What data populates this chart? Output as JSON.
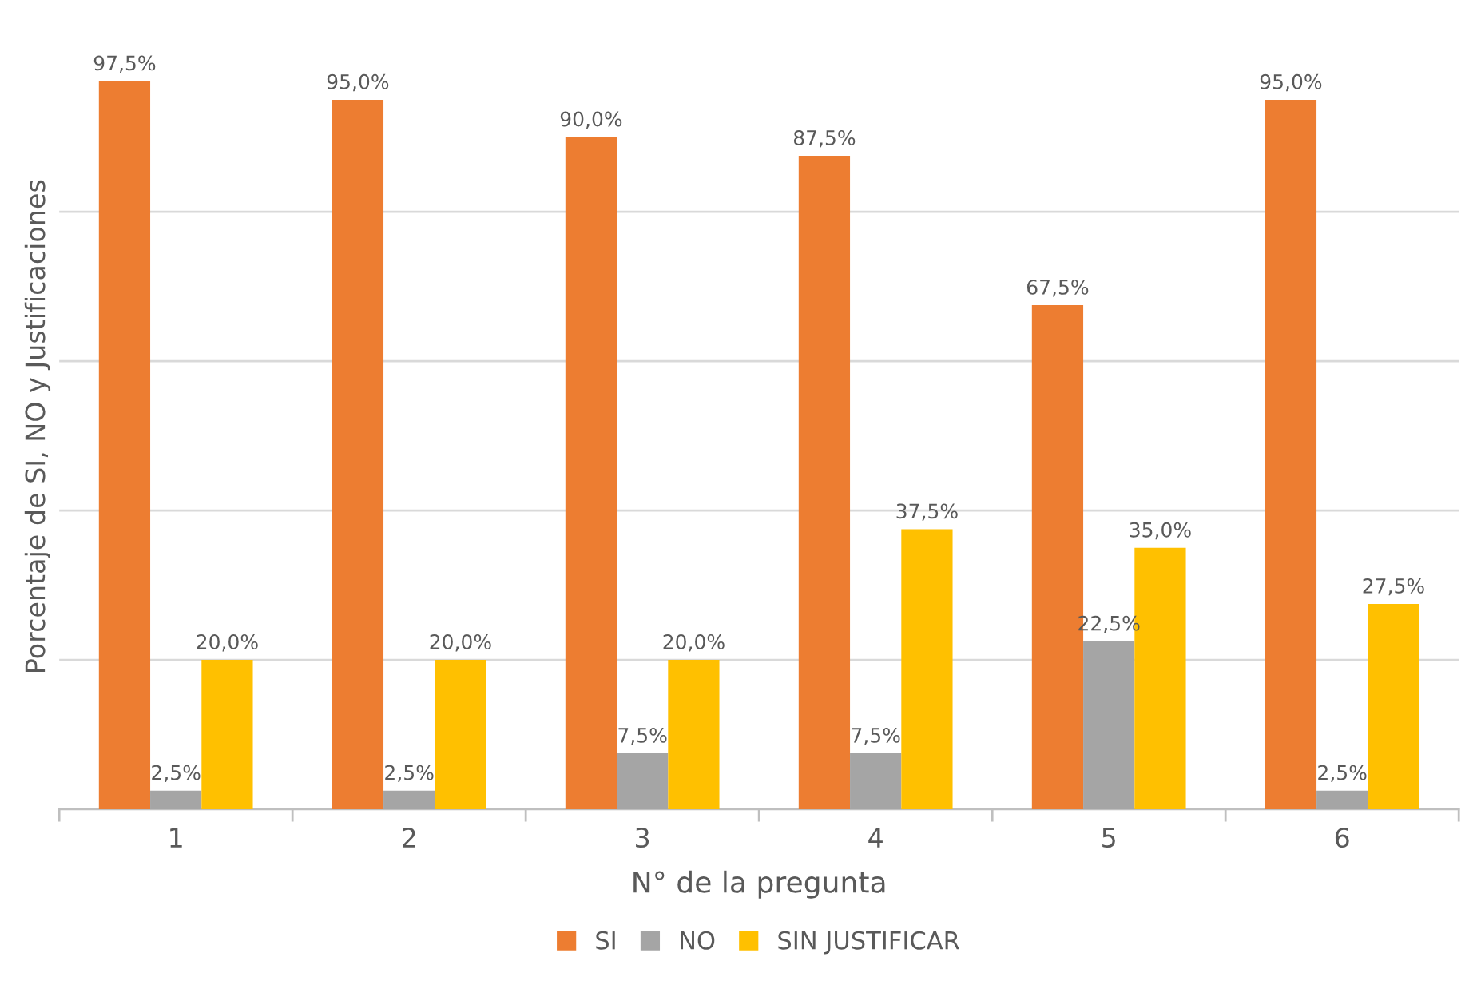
{
  "chart_data": {
    "type": "bar",
    "xlabel": "N° de la pregunta",
    "ylabel": "Porcentaje de SI, NO y Justificaciones",
    "categories": [
      "1",
      "2",
      "3",
      "4",
      "5",
      "6"
    ],
    "series": [
      {
        "name": "SI",
        "color": "#ed7d31",
        "values": [
          97.5,
          95.0,
          90.0,
          87.5,
          67.5,
          95.0
        ],
        "value_labels": [
          "97,5%",
          "95,0%",
          "90,0%",
          "87,5%",
          "67,5%",
          "95,0%"
        ]
      },
      {
        "name": "NO",
        "color": "#a5a5a5",
        "values": [
          2.5,
          2.5,
          7.5,
          7.5,
          22.5,
          2.5
        ],
        "value_labels": [
          "2,5%",
          "2,5%",
          "7,5%",
          "7,5%",
          "22,5%",
          "2,5%"
        ]
      },
      {
        "name": "SIN JUSTIFICAR",
        "color": "#ffc000",
        "values": [
          20.0,
          20.0,
          20.0,
          37.5,
          35.0,
          27.5
        ],
        "value_labels": [
          "20,0%",
          "20,0%",
          "20,0%",
          "37,5%",
          "35,0%",
          "27,5%"
        ]
      }
    ],
    "yticks": [
      {
        "value": 0,
        "label": null
      },
      {
        "value": 20,
        "label": null
      },
      {
        "value": 40,
        "label": null
      },
      {
        "value": 60,
        "label": null
      },
      {
        "value": 80,
        "label": null
      }
    ],
    "grid": "y",
    "legend": "bottom",
    "tick_labels": "x"
  }
}
